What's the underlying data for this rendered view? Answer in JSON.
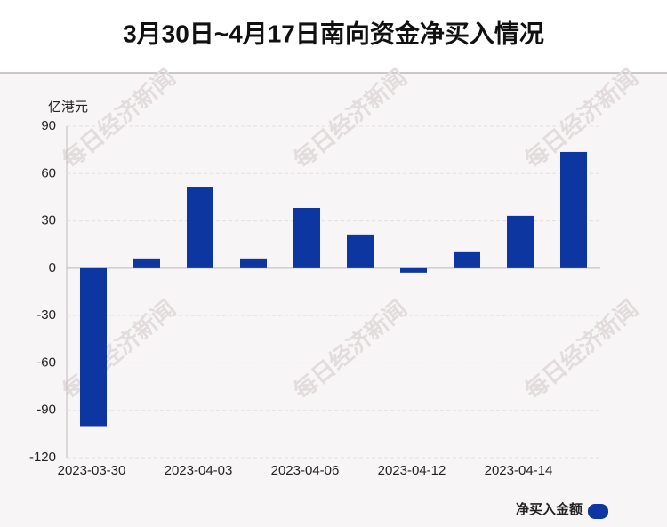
{
  "chart_data": {
    "type": "bar",
    "title": "3月30日~4月17日南向资金净买入情况",
    "y_label": "亿港元",
    "watermark": "每日经济新闻",
    "categories": [
      "2023-03-30",
      null,
      "2023-04-03",
      null,
      "2023-04-06",
      null,
      "2023-04-12",
      null,
      "2023-04-14",
      null
    ],
    "series": [
      {
        "name": "净买入金额",
        "color": "#0d36a0",
        "values": [
          -100,
          6.2,
          51.7,
          6.2,
          38.2,
          21.4,
          -2.8,
          10.7,
          33.2,
          73.7
        ]
      }
    ],
    "ylim": [
      -120,
      90
    ],
    "yticks": [
      -120,
      -90,
      -60,
      -30,
      0,
      30,
      60,
      90
    ],
    "grid": true,
    "legend": "bottom-right"
  }
}
